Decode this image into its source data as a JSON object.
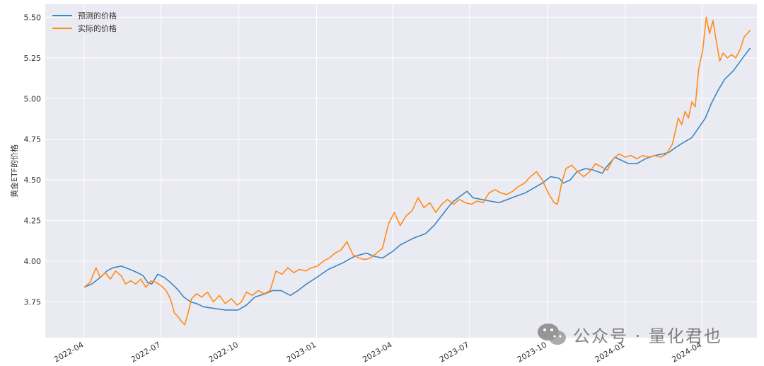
{
  "chart_data": {
    "type": "line",
    "title": "",
    "xlabel": "",
    "ylabel": "黄金ETF的价格",
    "x_ticks": [
      "2022-04",
      "2022-07",
      "2022-10",
      "2023-01",
      "2023-04",
      "2023-07",
      "2023-10",
      "2024-01",
      "2024-04"
    ],
    "xlim": [
      "2022-02-14",
      "2024-06-05"
    ],
    "ylim": [
      3.53,
      5.58
    ],
    "y_ticks": [
      "3.75",
      "4.00",
      "4.25",
      "4.50",
      "4.75",
      "5.00",
      "5.25",
      "5.50"
    ],
    "grid": true,
    "legend_position": "top-left",
    "background": "#eaeaf2",
    "series": [
      {
        "name": "预测的价格",
        "color": "#3b87c2",
        "points": [
          [
            "2022-04-01",
            3.84
          ],
          [
            "2022-04-10",
            3.86
          ],
          [
            "2022-04-20",
            3.9
          ],
          [
            "2022-04-28",
            3.94
          ],
          [
            "2022-05-05",
            3.96
          ],
          [
            "2022-05-15",
            3.97
          ],
          [
            "2022-05-25",
            3.95
          ],
          [
            "2022-06-03",
            3.93
          ],
          [
            "2022-06-10",
            3.91
          ],
          [
            "2022-06-15",
            3.87
          ],
          [
            "2022-06-20",
            3.86
          ],
          [
            "2022-06-27",
            3.92
          ],
          [
            "2022-07-05",
            3.9
          ],
          [
            "2022-07-12",
            3.87
          ],
          [
            "2022-07-20",
            3.83
          ],
          [
            "2022-07-28",
            3.78
          ],
          [
            "2022-08-05",
            3.75
          ],
          [
            "2022-08-12",
            3.74
          ],
          [
            "2022-08-20",
            3.72
          ],
          [
            "2022-09-01",
            3.71
          ],
          [
            "2022-09-15",
            3.7
          ],
          [
            "2022-09-30",
            3.7
          ],
          [
            "2022-10-10",
            3.73
          ],
          [
            "2022-10-20",
            3.78
          ],
          [
            "2022-11-01",
            3.8
          ],
          [
            "2022-11-10",
            3.82
          ],
          [
            "2022-11-20",
            3.82
          ],
          [
            "2022-12-01",
            3.79
          ],
          [
            "2022-12-10",
            3.82
          ],
          [
            "2022-12-20",
            3.86
          ],
          [
            "2023-01-01",
            3.9
          ],
          [
            "2023-01-15",
            3.95
          ],
          [
            "2023-02-01",
            3.99
          ],
          [
            "2023-02-15",
            4.03
          ],
          [
            "2023-03-01",
            4.05
          ],
          [
            "2023-03-10",
            4.03
          ],
          [
            "2023-03-20",
            4.02
          ],
          [
            "2023-04-01",
            4.06
          ],
          [
            "2023-04-10",
            4.1
          ],
          [
            "2023-04-25",
            4.14
          ],
          [
            "2023-05-10",
            4.17
          ],
          [
            "2023-05-20",
            4.22
          ],
          [
            "2023-06-01",
            4.3
          ],
          [
            "2023-06-10",
            4.36
          ],
          [
            "2023-06-20",
            4.4
          ],
          [
            "2023-06-28",
            4.43
          ],
          [
            "2023-07-05",
            4.39
          ],
          [
            "2023-07-15",
            4.38
          ],
          [
            "2023-07-25",
            4.37
          ],
          [
            "2023-08-05",
            4.36
          ],
          [
            "2023-08-15",
            4.38
          ],
          [
            "2023-08-25",
            4.4
          ],
          [
            "2023-09-05",
            4.42
          ],
          [
            "2023-09-15",
            4.45
          ],
          [
            "2023-09-25",
            4.48
          ],
          [
            "2023-10-05",
            4.52
          ],
          [
            "2023-10-15",
            4.51
          ],
          [
            "2023-10-20",
            4.48
          ],
          [
            "2023-10-28",
            4.5
          ],
          [
            "2023-11-05",
            4.55
          ],
          [
            "2023-11-15",
            4.57
          ],
          [
            "2023-11-25",
            4.56
          ],
          [
            "2023-12-05",
            4.54
          ],
          [
            "2023-12-10",
            4.58
          ],
          [
            "2023-12-20",
            4.64
          ],
          [
            "2023-12-28",
            4.62
          ],
          [
            "2024-01-05",
            4.6
          ],
          [
            "2024-01-15",
            4.6
          ],
          [
            "2024-01-25",
            4.63
          ],
          [
            "2024-02-05",
            4.65
          ],
          [
            "2024-02-15",
            4.66
          ],
          [
            "2024-02-22",
            4.67
          ],
          [
            "2024-03-01",
            4.7
          ],
          [
            "2024-03-10",
            4.73
          ],
          [
            "2024-03-20",
            4.76
          ],
          [
            "2024-03-28",
            4.82
          ],
          [
            "2024-04-05",
            4.88
          ],
          [
            "2024-04-12",
            4.97
          ],
          [
            "2024-04-20",
            5.05
          ],
          [
            "2024-04-28",
            5.12
          ],
          [
            "2024-05-08",
            5.17
          ],
          [
            "2024-05-15",
            5.22
          ],
          [
            "2024-05-22",
            5.27
          ],
          [
            "2024-05-28",
            5.31
          ]
        ]
      },
      {
        "name": "实际的价格",
        "color": "#ff8c1a",
        "points": [
          [
            "2022-04-01",
            3.84
          ],
          [
            "2022-04-08",
            3.87
          ],
          [
            "2022-04-15",
            3.96
          ],
          [
            "2022-04-20",
            3.9
          ],
          [
            "2022-04-26",
            3.93
          ],
          [
            "2022-05-02",
            3.89
          ],
          [
            "2022-05-08",
            3.94
          ],
          [
            "2022-05-15",
            3.91
          ],
          [
            "2022-05-20",
            3.86
          ],
          [
            "2022-05-26",
            3.88
          ],
          [
            "2022-06-01",
            3.86
          ],
          [
            "2022-06-07",
            3.89
          ],
          [
            "2022-06-13",
            3.84
          ],
          [
            "2022-06-19",
            3.88
          ],
          [
            "2022-06-25",
            3.87
          ],
          [
            "2022-07-01",
            3.85
          ],
          [
            "2022-07-07",
            3.82
          ],
          [
            "2022-07-12",
            3.77
          ],
          [
            "2022-07-17",
            3.68
          ],
          [
            "2022-07-21",
            3.66
          ],
          [
            "2022-07-25",
            3.63
          ],
          [
            "2022-07-29",
            3.61
          ],
          [
            "2022-08-02",
            3.68
          ],
          [
            "2022-08-06",
            3.77
          ],
          [
            "2022-08-12",
            3.8
          ],
          [
            "2022-08-18",
            3.78
          ],
          [
            "2022-08-25",
            3.81
          ],
          [
            "2022-09-01",
            3.75
          ],
          [
            "2022-09-08",
            3.79
          ],
          [
            "2022-09-15",
            3.74
          ],
          [
            "2022-09-22",
            3.77
          ],
          [
            "2022-09-29",
            3.73
          ],
          [
            "2022-10-04",
            3.75
          ],
          [
            "2022-10-10",
            3.81
          ],
          [
            "2022-10-17",
            3.79
          ],
          [
            "2022-10-24",
            3.82
          ],
          [
            "2022-10-31",
            3.8
          ],
          [
            "2022-11-07",
            3.82
          ],
          [
            "2022-11-14",
            3.94
          ],
          [
            "2022-11-21",
            3.92
          ],
          [
            "2022-11-28",
            3.96
          ],
          [
            "2022-12-05",
            3.93
          ],
          [
            "2022-12-12",
            3.95
          ],
          [
            "2022-12-19",
            3.94
          ],
          [
            "2022-12-26",
            3.96
          ],
          [
            "2023-01-02",
            3.97
          ],
          [
            "2023-01-09",
            4.0
          ],
          [
            "2023-01-16",
            4.02
          ],
          [
            "2023-01-23",
            4.05
          ],
          [
            "2023-01-30",
            4.07
          ],
          [
            "2023-02-06",
            4.12
          ],
          [
            "2023-02-13",
            4.04
          ],
          [
            "2023-02-20",
            4.02
          ],
          [
            "2023-02-27",
            4.01
          ],
          [
            "2023-03-06",
            4.02
          ],
          [
            "2023-03-13",
            4.05
          ],
          [
            "2023-03-20",
            4.08
          ],
          [
            "2023-03-27",
            4.23
          ],
          [
            "2023-04-03",
            4.3
          ],
          [
            "2023-04-10",
            4.22
          ],
          [
            "2023-04-17",
            4.28
          ],
          [
            "2023-04-24",
            4.31
          ],
          [
            "2023-05-01",
            4.39
          ],
          [
            "2023-05-08",
            4.33
          ],
          [
            "2023-05-15",
            4.36
          ],
          [
            "2023-05-22",
            4.3
          ],
          [
            "2023-05-29",
            4.35
          ],
          [
            "2023-06-05",
            4.38
          ],
          [
            "2023-06-12",
            4.35
          ],
          [
            "2023-06-19",
            4.38
          ],
          [
            "2023-06-26",
            4.36
          ],
          [
            "2023-07-03",
            4.35
          ],
          [
            "2023-07-10",
            4.37
          ],
          [
            "2023-07-17",
            4.36
          ],
          [
            "2023-07-24",
            4.42
          ],
          [
            "2023-07-31",
            4.44
          ],
          [
            "2023-08-07",
            4.42
          ],
          [
            "2023-08-14",
            4.41
          ],
          [
            "2023-08-21",
            4.43
          ],
          [
            "2023-08-28",
            4.46
          ],
          [
            "2023-09-04",
            4.48
          ],
          [
            "2023-09-11",
            4.52
          ],
          [
            "2023-09-18",
            4.55
          ],
          [
            "2023-09-25",
            4.5
          ],
          [
            "2023-10-02",
            4.42
          ],
          [
            "2023-10-09",
            4.36
          ],
          [
            "2023-10-13",
            4.35
          ],
          [
            "2023-10-18",
            4.48
          ],
          [
            "2023-10-23",
            4.57
          ],
          [
            "2023-10-30",
            4.59
          ],
          [
            "2023-11-06",
            4.55
          ],
          [
            "2023-11-13",
            4.52
          ],
          [
            "2023-11-20",
            4.55
          ],
          [
            "2023-11-27",
            4.6
          ],
          [
            "2023-12-04",
            4.58
          ],
          [
            "2023-12-11",
            4.56
          ],
          [
            "2023-12-18",
            4.63
          ],
          [
            "2023-12-25",
            4.66
          ],
          [
            "2024-01-01",
            4.64
          ],
          [
            "2024-01-08",
            4.65
          ],
          [
            "2024-01-15",
            4.63
          ],
          [
            "2024-01-22",
            4.65
          ],
          [
            "2024-01-29",
            4.64
          ],
          [
            "2024-02-05",
            4.65
          ],
          [
            "2024-02-12",
            4.64
          ],
          [
            "2024-02-19",
            4.66
          ],
          [
            "2024-02-26",
            4.72
          ],
          [
            "2024-03-04",
            4.88
          ],
          [
            "2024-03-08",
            4.84
          ],
          [
            "2024-03-12",
            4.92
          ],
          [
            "2024-03-16",
            4.88
          ],
          [
            "2024-03-20",
            4.98
          ],
          [
            "2024-03-24",
            4.95
          ],
          [
            "2024-03-28",
            5.18
          ],
          [
            "2024-04-02",
            5.3
          ],
          [
            "2024-04-06",
            5.5
          ],
          [
            "2024-04-10",
            5.4
          ],
          [
            "2024-04-14",
            5.48
          ],
          [
            "2024-04-18",
            5.35
          ],
          [
            "2024-04-22",
            5.23
          ],
          [
            "2024-04-26",
            5.28
          ],
          [
            "2024-05-01",
            5.25
          ],
          [
            "2024-05-06",
            5.27
          ],
          [
            "2024-05-11",
            5.25
          ],
          [
            "2024-05-16",
            5.3
          ],
          [
            "2024-05-21",
            5.38
          ],
          [
            "2024-05-28",
            5.42
          ]
        ]
      }
    ]
  },
  "watermark": {
    "text": "公众号 · 量化君也",
    "icon": "wechat-icon"
  }
}
